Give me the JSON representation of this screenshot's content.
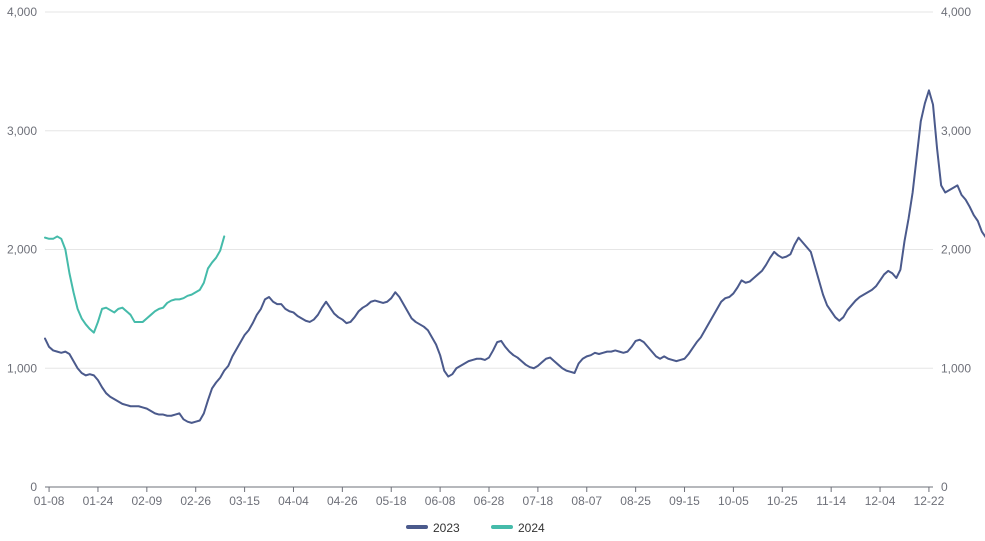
{
  "chart_data": {
    "type": "line",
    "title": "",
    "xlabel": "",
    "ylabel": "",
    "ylim": [
      0,
      4000
    ],
    "y_ticks": [
      "0",
      "1,000",
      "2,000",
      "3,000",
      "4,000"
    ],
    "y_tick_values": [
      0,
      1000,
      2000,
      3000,
      4000
    ],
    "x_tick_labels": [
      "01-08",
      "01-24",
      "02-09",
      "02-26",
      "03-15",
      "04-04",
      "04-26",
      "05-18",
      "06-08",
      "06-28",
      "07-18",
      "08-07",
      "08-25",
      "09-15",
      "10-05",
      "10-25",
      "11-14",
      "12-04",
      "12-22"
    ],
    "x_tick_index": [
      1,
      13,
      25,
      37,
      49,
      61,
      73,
      85,
      97,
      109,
      121,
      133,
      145,
      157,
      169,
      181,
      193,
      205,
      217
    ],
    "x_count": 219,
    "grid": true,
    "legend_position": "bottom-center",
    "series": [
      {
        "name": "2023",
        "color": "#4b5a8c",
        "values": [
          1250,
          1180,
          1150,
          1140,
          1130,
          1140,
          1120,
          1060,
          1000,
          960,
          940,
          950,
          940,
          900,
          840,
          790,
          760,
          740,
          720,
          700,
          690,
          680,
          680,
          680,
          670,
          660,
          640,
          620,
          610,
          610,
          600,
          600,
          610,
          620,
          570,
          550,
          540,
          550,
          560,
          620,
          730,
          830,
          880,
          920,
          980,
          1020,
          1100,
          1160,
          1220,
          1280,
          1320,
          1380,
          1450,
          1500,
          1580,
          1600,
          1560,
          1540,
          1540,
          1500,
          1480,
          1470,
          1440,
          1420,
          1400,
          1390,
          1410,
          1450,
          1510,
          1560,
          1510,
          1460,
          1430,
          1410,
          1380,
          1390,
          1430,
          1480,
          1510,
          1530,
          1560,
          1570,
          1560,
          1550,
          1560,
          1590,
          1640,
          1600,
          1540,
          1480,
          1420,
          1390,
          1370,
          1350,
          1320,
          1260,
          1200,
          1110,
          980,
          930,
          950,
          1000,
          1020,
          1040,
          1060,
          1070,
          1080,
          1080,
          1070,
          1090,
          1150,
          1220,
          1230,
          1180,
          1140,
          1110,
          1090,
          1060,
          1030,
          1010,
          1000,
          1020,
          1050,
          1080,
          1090,
          1060,
          1030,
          1000,
          980,
          970,
          960,
          1040,
          1080,
          1100,
          1110,
          1130,
          1120,
          1130,
          1140,
          1140,
          1150,
          1140,
          1130,
          1140,
          1180,
          1230,
          1240,
          1220,
          1180,
          1140,
          1100,
          1080,
          1100,
          1080,
          1070,
          1060,
          1070,
          1080,
          1120,
          1170,
          1220,
          1260,
          1320,
          1380,
          1440,
          1500,
          1560,
          1590,
          1600,
          1630,
          1680,
          1740,
          1720,
          1730,
          1760,
          1790,
          1820,
          1870,
          1930,
          1980,
          1950,
          1930,
          1940,
          1960,
          2040,
          2100,
          2060,
          2020,
          1980,
          1860,
          1740,
          1620,
          1530,
          1480,
          1430,
          1400,
          1430,
          1490,
          1530,
          1570,
          1600,
          1620,
          1640,
          1660,
          1690,
          1740,
          1790,
          1820,
          1800,
          1760,
          1830,
          2070,
          2260,
          2480,
          2780,
          3080,
          3230,
          3340,
          3220,
          2850,
          2540,
          2480,
          2500,
          2520,
          2540,
          2460,
          2420,
          2360,
          2290,
          2240,
          2150,
          2100,
          2100
        ]
      },
      {
        "name": "2024",
        "color": "#45bbaa",
        "values": [
          2100,
          2090,
          2090,
          2110,
          2090,
          2000,
          1800,
          1640,
          1500,
          1420,
          1370,
          1330,
          1300,
          1390,
          1500,
          1510,
          1490,
          1470,
          1500,
          1510,
          1480,
          1450,
          1390,
          1390,
          1390,
          1420,
          1450,
          1480,
          1500,
          1510,
          1550,
          1570,
          1580,
          1580,
          1590,
          1610,
          1620,
          1640,
          1660,
          1720,
          1840,
          1890,
          1930,
          1990,
          2110
        ]
      }
    ]
  }
}
